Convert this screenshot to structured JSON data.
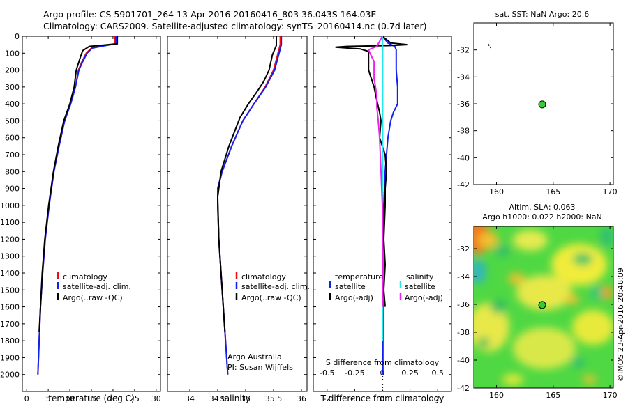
{
  "title_line1": "Argo profile: CS 5901701_264 13-Apr-2016 20160416_803 36.043S 164.03E",
  "title_line2": "Climatology: CARS2009. Satellite-adjusted climatology: synTS_20160414.nc (0.7d later)",
  "credit": "©IMOS 23-Apr-2016 20:48:09",
  "colors": {
    "climatology": "#e8101a",
    "satellite": "#1020ee",
    "argo": "#000000",
    "sal_satellite": "#22e8ee",
    "sal_argo": "#ee22ee"
  },
  "chart_data": [
    {
      "type": "line",
      "xlabel": "temperature (deg C)",
      "ylabel": "",
      "xlim": [
        -1,
        31
      ],
      "ylim": [
        2100,
        0
      ],
      "xticks": [
        "0",
        "5",
        "10",
        "15",
        "20",
        "25",
        "30"
      ],
      "yticks": [
        "0",
        "100",
        "200",
        "300",
        "400",
        "500",
        "600",
        "700",
        "800",
        "900",
        "1000",
        "1100",
        "1200",
        "1300",
        "1400",
        "1500",
        "1600",
        "1700",
        "1800",
        "1900",
        "2000"
      ],
      "legend": [
        "climatology",
        "satellite-adj. clim.",
        "Argo(..raw -QC)"
      ],
      "series": [
        {
          "name": "climatology",
          "color": "#e8101a",
          "points": [
            [
              20.5,
              0
            ],
            [
              20.5,
              45
            ],
            [
              18,
              55
            ],
            [
              15,
              70
            ],
            [
              13.8,
              100
            ],
            [
              12.8,
              150
            ],
            [
              12,
              200
            ],
            [
              11.3,
              300
            ],
            [
              10.2,
              400
            ],
            [
              8.8,
              500
            ],
            [
              7.5,
              650
            ],
            [
              6.3,
              800
            ],
            [
              5.2,
              1000
            ],
            [
              4.3,
              1200
            ],
            [
              3.7,
              1400
            ],
            [
              3.2,
              1600
            ],
            [
              2.9,
              1800
            ],
            [
              2.6,
              2000
            ]
          ]
        },
        {
          "name": "satellite-adj. clim.",
          "color": "#1020ee",
          "points": [
            [
              20.7,
              0
            ],
            [
              20.7,
              45
            ],
            [
              18.3,
              55
            ],
            [
              15.2,
              70
            ],
            [
              14,
              100
            ],
            [
              13,
              150
            ],
            [
              12.1,
              200
            ],
            [
              11.3,
              300
            ],
            [
              10.2,
              400
            ],
            [
              8.8,
              500
            ],
            [
              7.5,
              650
            ],
            [
              6.3,
              800
            ],
            [
              5.2,
              1000
            ],
            [
              4.3,
              1200
            ],
            [
              3.7,
              1400
            ],
            [
              3.2,
              1600
            ],
            [
              2.9,
              1800
            ],
            [
              2.6,
              2000
            ]
          ]
        },
        {
          "name": "Argo(..raw -QC)",
          "color": "#000000",
          "points": [
            [
              21,
              0
            ],
            [
              21,
              45
            ],
            [
              18,
              52
            ],
            [
              14.5,
              60
            ],
            [
              13,
              85
            ],
            [
              12.5,
              120
            ],
            [
              11.5,
              200
            ],
            [
              11,
              300
            ],
            [
              10,
              400
            ],
            [
              8.6,
              500
            ],
            [
              7.3,
              650
            ],
            [
              6.2,
              800
            ],
            [
              5.1,
              1000
            ],
            [
              4.2,
              1200
            ],
            [
              3.6,
              1400
            ],
            [
              3.2,
              1600
            ],
            [
              2.9,
              1750
            ]
          ]
        }
      ]
    },
    {
      "type": "line",
      "xlabel": "salinity",
      "ylabel": "",
      "xlim": [
        33.6,
        36.1
      ],
      "ylim": [
        2100,
        0
      ],
      "xticks": [
        "34",
        "34.5",
        "35",
        "35.5",
        "36"
      ],
      "legend": [
        "climatology",
        "satellite-adj. clim.",
        "Argo(..raw -QC)"
      ],
      "annotation_lines": [
        "Argo Australia",
        "PI: Susan Wijffels"
      ],
      "series": [
        {
          "name": "climatology",
          "color": "#e8101a",
          "points": [
            [
              35.62,
              0
            ],
            [
              35.62,
              50
            ],
            [
              35.58,
              100
            ],
            [
              35.5,
              200
            ],
            [
              35.35,
              300
            ],
            [
              35.15,
              400
            ],
            [
              34.95,
              500
            ],
            [
              34.75,
              650
            ],
            [
              34.58,
              800
            ],
            [
              34.5,
              900
            ],
            [
              34.5,
              1000
            ],
            [
              34.52,
              1200
            ],
            [
              34.56,
              1400
            ],
            [
              34.6,
              1600
            ],
            [
              34.64,
              1800
            ],
            [
              34.68,
              2000
            ]
          ]
        },
        {
          "name": "satellite-adj. clim.",
          "color": "#1020ee",
          "points": [
            [
              35.64,
              0
            ],
            [
              35.64,
              50
            ],
            [
              35.6,
              100
            ],
            [
              35.52,
              200
            ],
            [
              35.36,
              300
            ],
            [
              35.15,
              400
            ],
            [
              34.95,
              500
            ],
            [
              34.75,
              650
            ],
            [
              34.58,
              800
            ],
            [
              34.5,
              900
            ],
            [
              34.5,
              1000
            ],
            [
              34.52,
              1200
            ],
            [
              34.56,
              1400
            ],
            [
              34.6,
              1600
            ],
            [
              34.64,
              1800
            ],
            [
              34.68,
              2000
            ]
          ]
        },
        {
          "name": "Argo(..raw -QC)",
          "color": "#000000",
          "points": [
            [
              35.55,
              0
            ],
            [
              35.55,
              55
            ],
            [
              35.48,
              110
            ],
            [
              35.42,
              200
            ],
            [
              35.32,
              270
            ],
            [
              35.2,
              330
            ],
            [
              35.05,
              400
            ],
            [
              34.9,
              480
            ],
            [
              34.7,
              650
            ],
            [
              34.56,
              800
            ],
            [
              34.5,
              950
            ],
            [
              34.52,
              1200
            ],
            [
              34.56,
              1400
            ],
            [
              34.6,
              1600
            ],
            [
              34.63,
              1750
            ]
          ]
        }
      ]
    },
    {
      "type": "line",
      "xlabel": "T difference from climatology",
      "top_axis_label": "S difference from climatology",
      "xlim": [
        -2.5,
        2.5
      ],
      "ylim": [
        2100,
        0
      ],
      "xticks": [
        "-2",
        "-1",
        "0",
        "1",
        "2"
      ],
      "top_xticks": [
        "-0.5",
        "-0.25",
        "0",
        "0.25",
        "0.5"
      ],
      "legend_groups": [
        {
          "heading": "temperature",
          "items": [
            "satellite",
            "Argo(-adj)"
          ]
        },
        {
          "heading": "salinity",
          "items": [
            "satellite",
            "Argo(-adj)"
          ]
        }
      ],
      "series": [
        {
          "name": "temperature satellite",
          "color": "#1020ee",
          "points": [
            [
              0,
              0
            ],
            [
              0.2,
              40
            ],
            [
              0.45,
              60
            ],
            [
              0.5,
              80
            ],
            [
              0.5,
              200
            ],
            [
              0.55,
              300
            ],
            [
              0.55,
              400
            ],
            [
              0.4,
              450
            ],
            [
              0.3,
              500
            ],
            [
              0.2,
              600
            ],
            [
              0.15,
              700
            ],
            [
              0.1,
              800
            ],
            [
              0.05,
              1000
            ],
            [
              0.02,
              1200
            ],
            [
              0.02,
              1400
            ],
            [
              0.02,
              1600
            ],
            [
              0.02,
              1800
            ],
            [
              0.02,
              2000
            ]
          ]
        },
        {
          "name": "temperature Argo(-adj)",
          "color": "#000000",
          "points": [
            [
              0,
              0
            ],
            [
              0.3,
              40
            ],
            [
              0.9,
              50
            ],
            [
              0.3,
              55
            ],
            [
              -1.3,
              60
            ],
            [
              -1.7,
              65
            ],
            [
              -0.8,
              75
            ],
            [
              -0.5,
              90
            ],
            [
              -0.5,
              200
            ],
            [
              -0.3,
              300
            ],
            [
              -0.2,
              380
            ],
            [
              -0.1,
              450
            ],
            [
              -0.05,
              500
            ],
            [
              -0.1,
              600
            ],
            [
              0.1,
              700
            ],
            [
              0.15,
              800
            ],
            [
              0.1,
              900
            ],
            [
              0.1,
              1000
            ],
            [
              0.05,
              1200
            ],
            [
              0.1,
              1350
            ],
            [
              0.05,
              1500
            ],
            [
              0.1,
              1600
            ]
          ]
        },
        {
          "name": "salinity satellite",
          "color": "#22e8ee",
          "points": [
            [
              0,
              0
            ],
            [
              0.01,
              80
            ],
            [
              0.01,
              200
            ],
            [
              0.01,
              400
            ],
            [
              0.01,
              600
            ],
            [
              0.01,
              800
            ],
            [
              0.0,
              1000
            ],
            [
              0.0,
              1400
            ],
            [
              0.0,
              1800
            ]
          ]
        },
        {
          "name": "salinity Argo(-adj)",
          "color": "#ee22ee",
          "points": [
            [
              0,
              0
            ],
            [
              -0.2,
              60
            ],
            [
              -0.5,
              80
            ],
            [
              -0.45,
              100
            ],
            [
              -0.3,
              150
            ],
            [
              -0.3,
              250
            ],
            [
              -0.2,
              350
            ],
            [
              -0.2,
              420
            ],
            [
              -0.15,
              500
            ],
            [
              -0.1,
              600
            ],
            [
              -0.05,
              800
            ],
            [
              0,
              1000
            ],
            [
              0,
              1200
            ],
            [
              0.02,
              1400
            ],
            [
              0,
              1600
            ]
          ]
        }
      ]
    },
    {
      "type": "scatter",
      "title": "sat. SST: NaN Argo: 20.6",
      "xlim": [
        158,
        170.3
      ],
      "ylim": [
        -42,
        -30
      ],
      "xticks": [
        "160",
        "165",
        "170"
      ],
      "yticks": [
        "-32",
        "-34",
        "-36",
        "-38",
        "-40",
        "-42"
      ],
      "points": [
        {
          "x": 164.03,
          "y": -36.043
        }
      ]
    },
    {
      "type": "heatmap",
      "title_line1": "Altim. SLA: 0.063",
      "title_line2": "Argo h1000: 0.022 h2000: NaN",
      "xlim": [
        158,
        170.3
      ],
      "ylim": [
        -42,
        -30.4
      ],
      "xticks": [
        "160",
        "165",
        "170"
      ],
      "yticks": [
        "-32",
        "-34",
        "-36",
        "-38",
        "-40",
        "-42"
      ],
      "points": [
        {
          "x": 164.03,
          "y": -36.043
        }
      ]
    }
  ]
}
